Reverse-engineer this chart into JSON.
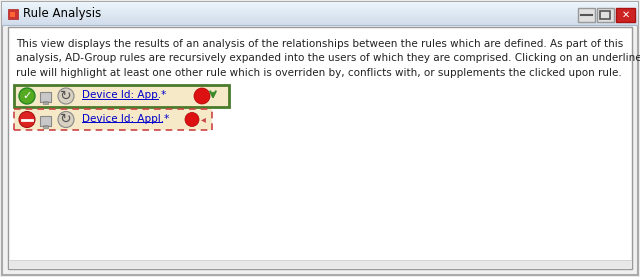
{
  "title": "Rule Analysis",
  "title_icon_color": "#cc3333",
  "window_bg": "#f0f0f0",
  "titlebar_bg": "#dce6f0",
  "titlebar_text_color": "#000000",
  "content_bg": "#ffffff",
  "content_border": "#999999",
  "description_text": "This view displays the results of an analysis of the relationships between the rules which are defined. As part of this\nanalysis, AD-Group rules are recursively expanded into the users of which they are comprised. Clicking on an underlined\nrule will highlight at least one other rule which is overriden by, conflicts with, or supplements the clicked upon rule.",
  "description_fontsize": 7.5,
  "row1_bg": "#f5e9c8",
  "row1_border": "#4a7a2a",
  "row1_text": "Device Id: App.*",
  "row1_arrow_color": "#3a8a2a",
  "row2_bg": "#f5e9c8",
  "row2_border": "#cc4444",
  "row2_text": "Device Id: Appl.*",
  "close_btn_color": "#cc2222",
  "outer_border": "#aaaaaa",
  "figsize": [
    6.4,
    2.77
  ],
  "dpi": 100
}
